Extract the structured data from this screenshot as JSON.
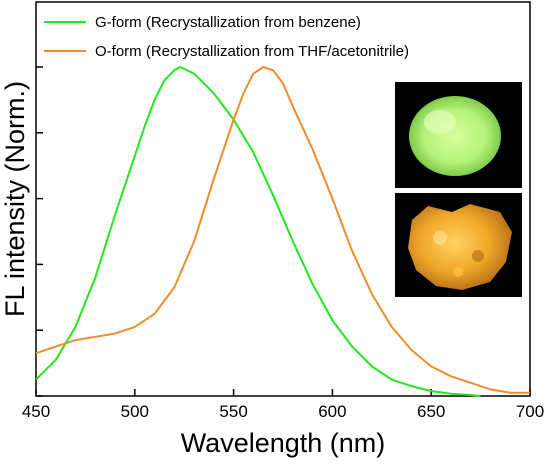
{
  "chart_data": {
    "type": "line",
    "xlabel": "Wavelength (nm)",
    "ylabel": "FL intensity (Norm.)",
    "xlim": [
      450,
      700
    ],
    "ylim": [
      0,
      1.0
    ],
    "x_ticks": [
      450,
      500,
      550,
      600,
      650,
      700
    ],
    "y_ticks_unlabeled": [
      0.0,
      0.2,
      0.4,
      0.6,
      0.8,
      1.0
    ],
    "grid": false,
    "legend_position": "top-left",
    "series": [
      {
        "name": "G-form (Recrystallization from benzene)",
        "color": "#22e61e",
        "x": [
          450,
          460,
          470,
          480,
          490,
          500,
          505,
          510,
          515,
          520,
          523,
          530,
          540,
          550,
          560,
          570,
          580,
          590,
          600,
          610,
          620,
          630,
          640,
          650,
          660,
          670,
          675
        ],
        "y": [
          0.05,
          0.11,
          0.21,
          0.36,
          0.55,
          0.73,
          0.82,
          0.9,
          0.96,
          0.99,
          1.0,
          0.98,
          0.92,
          0.84,
          0.74,
          0.61,
          0.47,
          0.34,
          0.23,
          0.15,
          0.09,
          0.05,
          0.03,
          0.015,
          0.007,
          0.003,
          0.0
        ]
      },
      {
        "name": "O-form (Recrystallization from THF/acetonitrile)",
        "color": "#ef8c2b",
        "x": [
          450,
          460,
          470,
          480,
          490,
          500,
          510,
          520,
          530,
          540,
          550,
          555,
          560,
          565,
          570,
          575,
          580,
          590,
          600,
          610,
          620,
          630,
          640,
          650,
          660,
          670,
          680,
          690,
          700
        ],
        "y": [
          0.13,
          0.15,
          0.17,
          0.18,
          0.19,
          0.21,
          0.25,
          0.33,
          0.47,
          0.66,
          0.84,
          0.92,
          0.98,
          1.0,
          0.99,
          0.95,
          0.88,
          0.75,
          0.6,
          0.44,
          0.31,
          0.21,
          0.14,
          0.09,
          0.06,
          0.04,
          0.02,
          0.01,
          0.01
        ]
      }
    ]
  },
  "insets": {
    "top_photo": "green-fluorescent-powder",
    "bottom_photo": "orange-fluorescent-powder"
  }
}
